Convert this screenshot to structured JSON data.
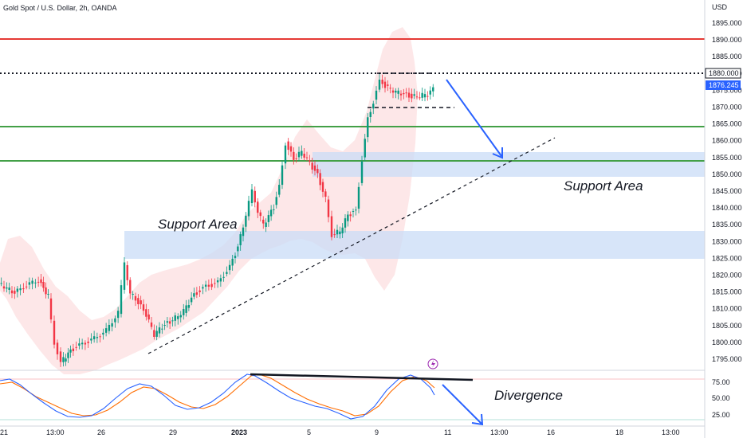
{
  "header": {
    "symbol_title": "Gold Spot / U.S. Dollar, 2h, OANDA",
    "currency": "USD"
  },
  "price_axis": {
    "ticks": [
      "1895.000",
      "1890.000",
      "1885.000",
      "1880.000",
      "1875.000",
      "1870.000",
      "1865.000",
      "1860.000",
      "1855.000",
      "1850.000",
      "1845.000",
      "1840.000",
      "1835.000",
      "1830.000",
      "1825.000",
      "1820.000",
      "1815.000",
      "1810.000",
      "1805.000",
      "1800.000",
      "1795.000"
    ],
    "level_tag": "1880.000",
    "last_price_tag": "1876.245"
  },
  "time_axis": {
    "labels": [
      "21",
      "13:00",
      "26",
      "29",
      "2023",
      "5",
      "9",
      "11",
      "13:00",
      "16",
      "18",
      "13:00"
    ]
  },
  "oscillator_axis": {
    "ticks": [
      "75.00",
      "50.00",
      "25.00"
    ]
  },
  "annotations": {
    "support_area_left": "Support Area",
    "support_area_right": "Support Area",
    "divergence": "Divergence"
  },
  "icons": {
    "event": "lightning-icon"
  },
  "colors": {
    "bull": "#089981",
    "bear": "#f23645",
    "resistance_line": "#e53935",
    "support_line": "#43a047",
    "support_zone": "#c9dcf7",
    "band": "#fde2e4",
    "arrow": "#2962ff",
    "stoch_k": "#2962ff",
    "stoch_d": "#ff6d00",
    "last_price_bg": "#2962ff"
  }
}
